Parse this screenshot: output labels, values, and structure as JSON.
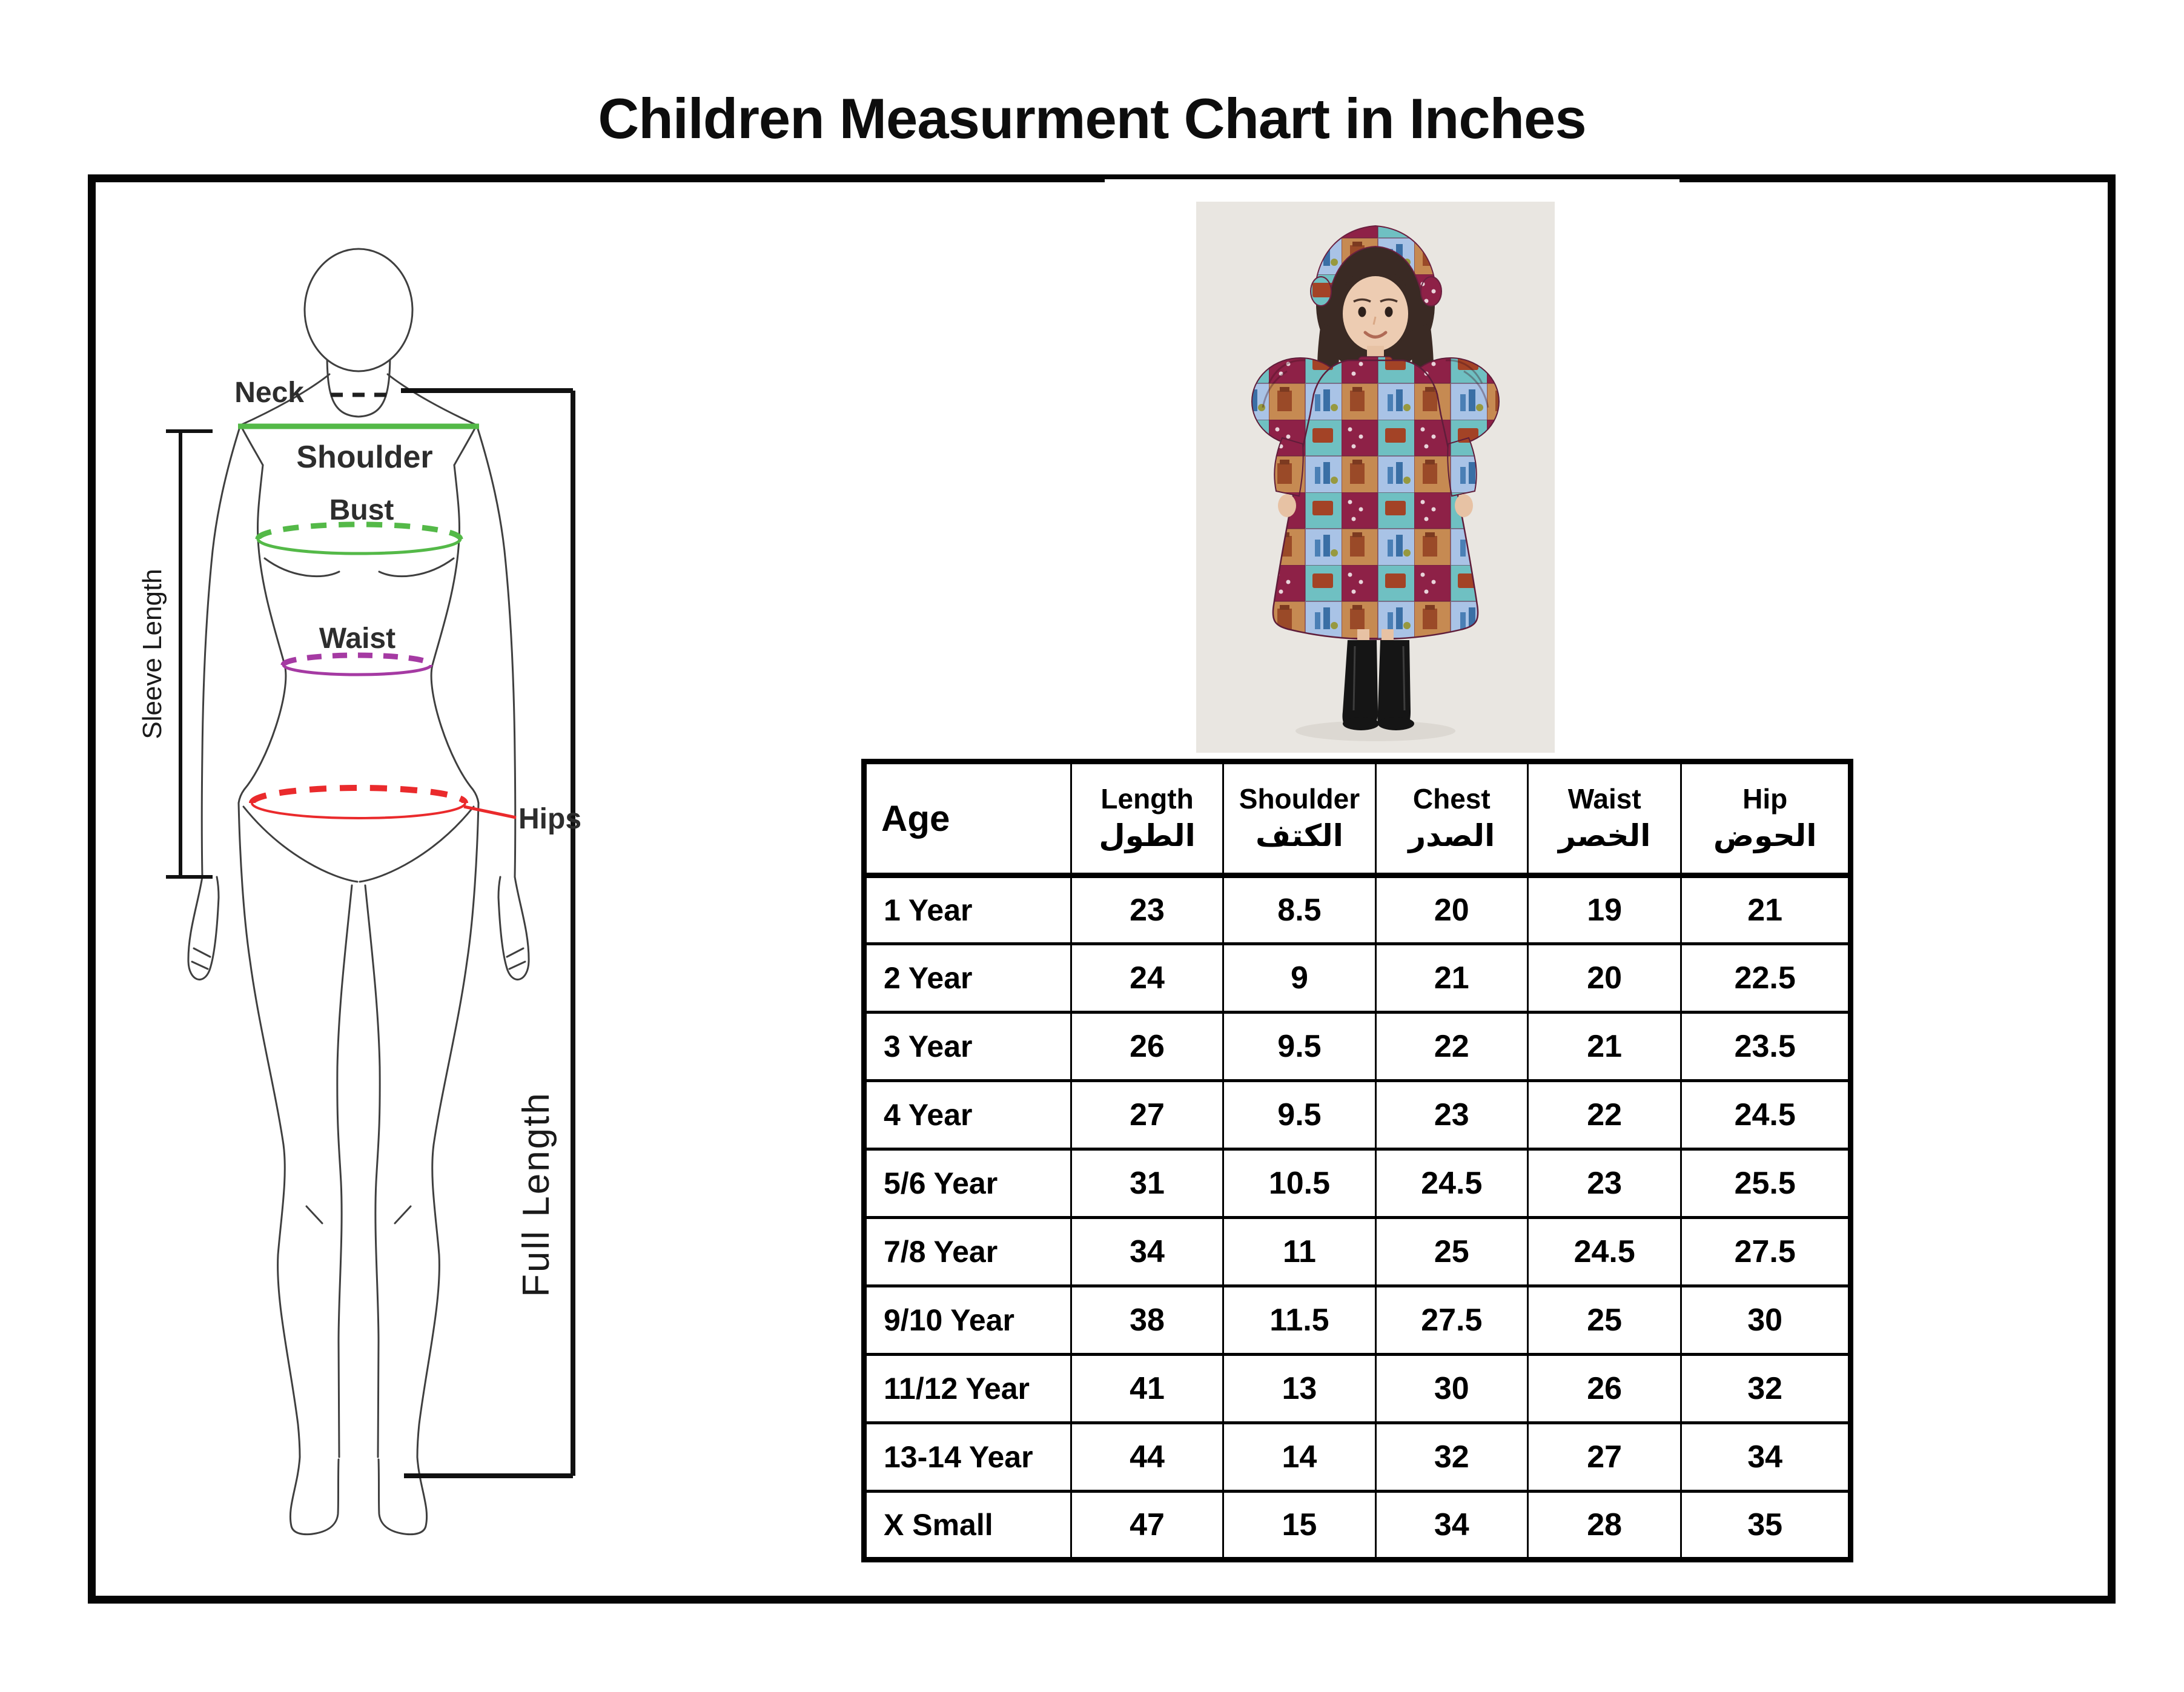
{
  "title": "Children Measurment Chart in Inches",
  "figure": {
    "labels": {
      "neck": "Neck",
      "shoulder": "Shoulder",
      "bust": "Bust",
      "waist": "Waist",
      "hips": "Hips",
      "sleeve_length": "Sleeve Length",
      "full_length": "Full Length"
    },
    "colors": {
      "neck_line": "#1f1f1f",
      "shoulder_line": "#54b948",
      "bust_line": "#54b948",
      "waist_line": "#a53aa3",
      "hips_line": "#ea2a2c",
      "outline": "#3f3f3f",
      "bracket": "#111111"
    }
  },
  "photo": {
    "alt": "Child model wearing a colorful patchwork-print puff-sleeve dress, fabric headband and black boots",
    "background": "#e9e6e1",
    "dress_palette": [
      "#8e2147",
      "#6fc0c2",
      "#c68a52",
      "#a9c3e6"
    ],
    "boots_color": "#151515"
  },
  "table": {
    "columns": [
      {
        "key": "age",
        "en": "Age",
        "ar": ""
      },
      {
        "key": "length",
        "en": "Length",
        "ar": "الطول"
      },
      {
        "key": "shoulder",
        "en": "Shoulder",
        "ar": "الكتف"
      },
      {
        "key": "chest",
        "en": "Chest",
        "ar": "الصدر"
      },
      {
        "key": "waist",
        "en": "Waist",
        "ar": "الخصر"
      },
      {
        "key": "hip",
        "en": "Hip",
        "ar": "الحوض"
      }
    ],
    "rows": [
      {
        "age": "1 Year",
        "length": "23",
        "shoulder": "8.5",
        "chest": "20",
        "waist": "19",
        "hip": "21"
      },
      {
        "age": "2 Year",
        "length": "24",
        "shoulder": "9",
        "chest": "21",
        "waist": "20",
        "hip": "22.5"
      },
      {
        "age": "3 Year",
        "length": "26",
        "shoulder": "9.5",
        "chest": "22",
        "waist": "21",
        "hip": "23.5"
      },
      {
        "age": "4 Year",
        "length": "27",
        "shoulder": "9.5",
        "chest": "23",
        "waist": "22",
        "hip": "24.5"
      },
      {
        "age": "5/6 Year",
        "length": "31",
        "shoulder": "10.5",
        "chest": "24.5",
        "waist": "23",
        "hip": "25.5"
      },
      {
        "age": "7/8 Year",
        "length": "34",
        "shoulder": "11",
        "chest": "25",
        "waist": "24.5",
        "hip": "27.5"
      },
      {
        "age": "9/10 Year",
        "length": "38",
        "shoulder": "11.5",
        "chest": "27.5",
        "waist": "25",
        "hip": "30"
      },
      {
        "age": "11/12 Year",
        "length": "41",
        "shoulder": "13",
        "chest": "30",
        "waist": "26",
        "hip": "32"
      },
      {
        "age": "13-14 Year",
        "length": "44",
        "shoulder": "14",
        "chest": "32",
        "waist": "27",
        "hip": "34"
      },
      {
        "age": "X Small",
        "length": "47",
        "shoulder": "15",
        "chest": "34",
        "waist": "28",
        "hip": "35"
      }
    ]
  }
}
